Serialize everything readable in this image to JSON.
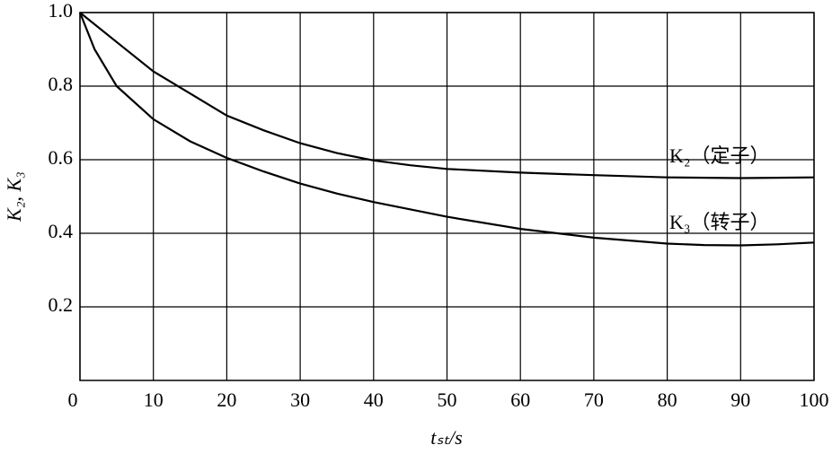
{
  "chart_data": {
    "type": "line",
    "xlabel": "tₛₜ/s",
    "ylabel": "K₂, K₃",
    "xlim": [
      0,
      100
    ],
    "xticks": [
      0,
      10,
      20,
      30,
      40,
      50,
      60,
      70,
      80,
      90,
      100
    ],
    "ylim": [
      0,
      1
    ],
    "yticks": [
      0.2,
      0.4,
      0.6,
      0.8,
      {
        "value": 1,
        "label": "1.0"
      }
    ],
    "grid": true,
    "series": [
      {
        "name": "K₂（定子）",
        "color": "#000000",
        "x": [
          0,
          5,
          10,
          15,
          20,
          25,
          30,
          35,
          40,
          45,
          50,
          60,
          70,
          80,
          90,
          100
        ],
        "values": [
          1.0,
          0.92,
          0.84,
          0.78,
          0.72,
          0.68,
          0.645,
          0.618,
          0.598,
          0.585,
          0.575,
          0.565,
          0.558,
          0.552,
          0.55,
          0.552
        ]
      },
      {
        "name": "K₃（转子）",
        "color": "#000000",
        "x": [
          0,
          2,
          5,
          10,
          15,
          20,
          25,
          30,
          35,
          40,
          50,
          60,
          70,
          80,
          85,
          90,
          95,
          100
        ],
        "values": [
          1.0,
          0.9,
          0.8,
          0.71,
          0.65,
          0.605,
          0.568,
          0.535,
          0.508,
          0.485,
          0.445,
          0.412,
          0.388,
          0.372,
          0.368,
          0.367,
          0.37,
          0.375
        ]
      }
    ]
  }
}
